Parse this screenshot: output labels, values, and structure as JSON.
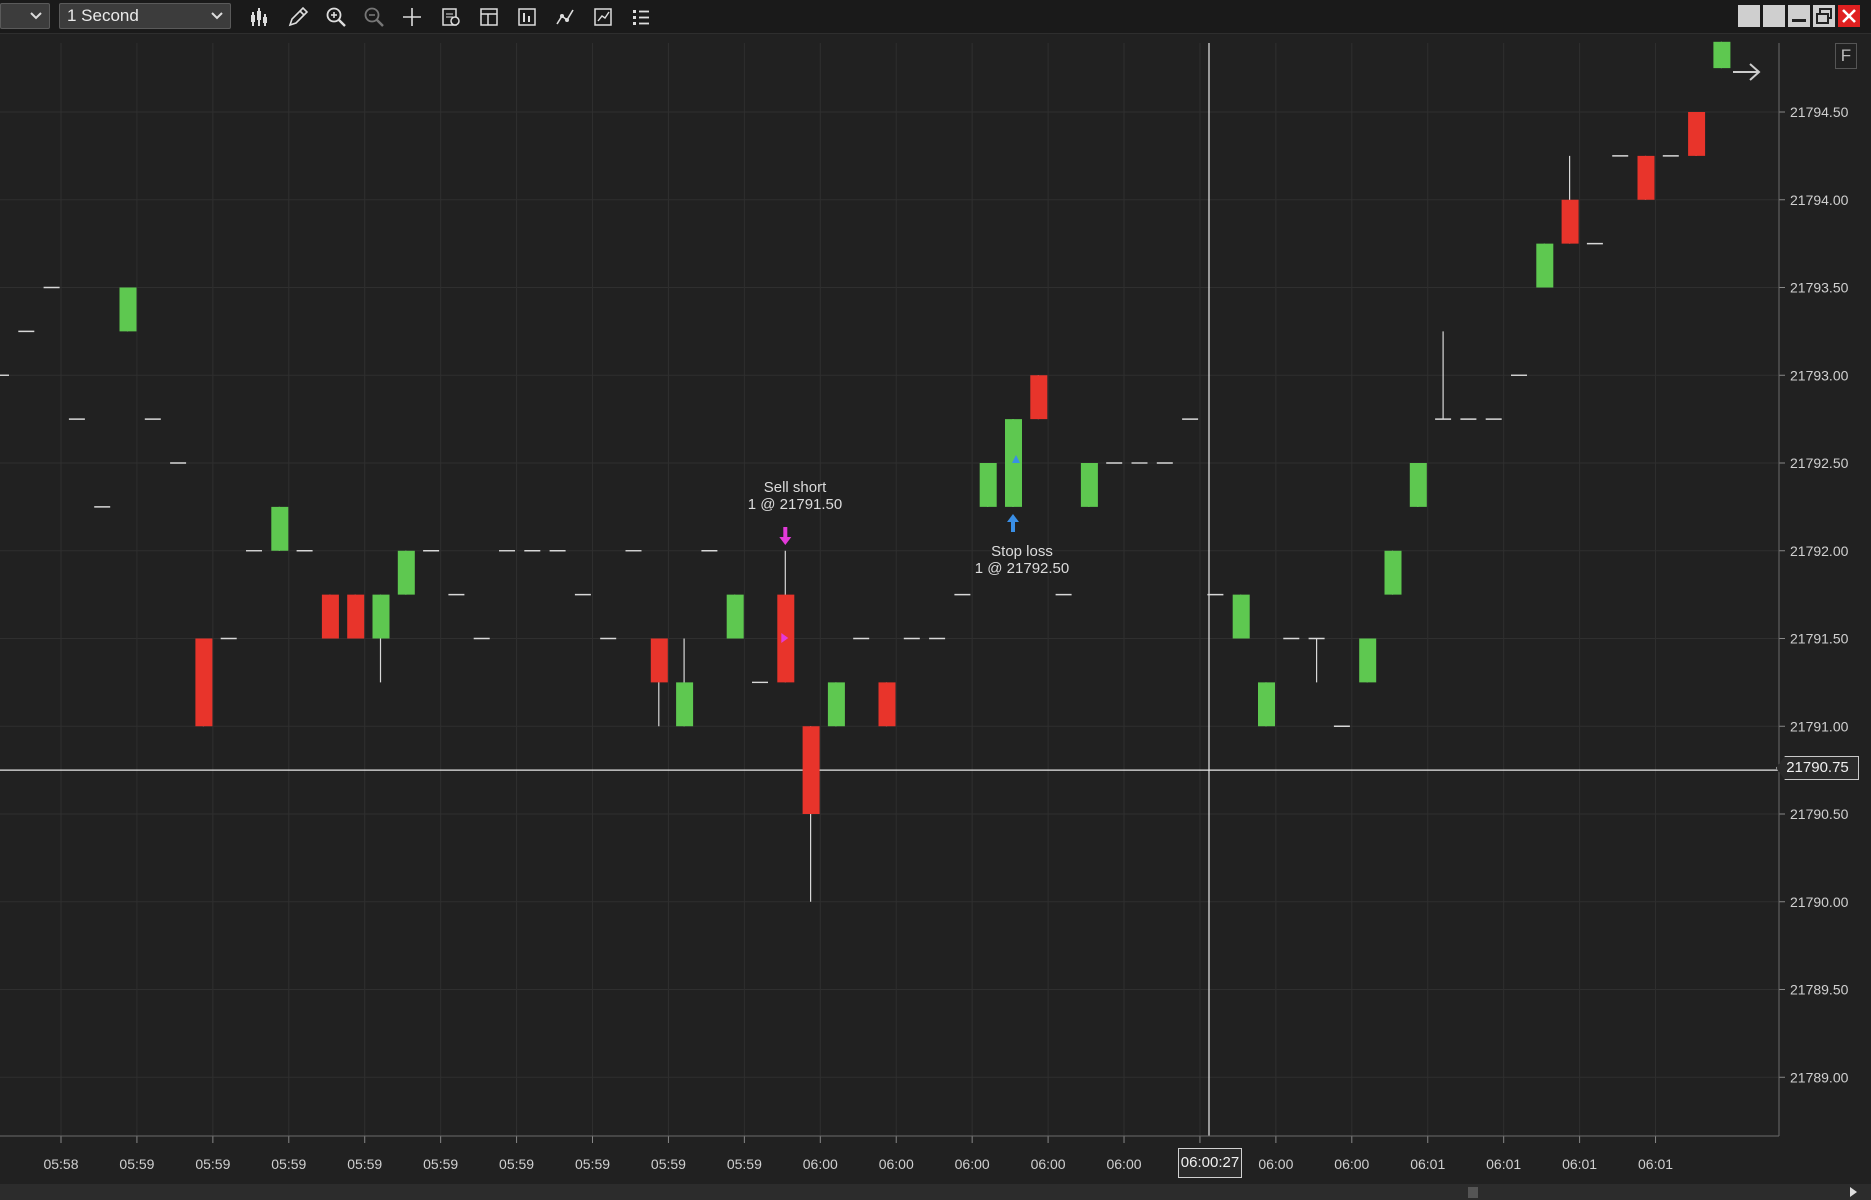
{
  "toolbar": {
    "instrument_value": "",
    "interval_value": "1 Second",
    "icons": [
      "bar-type-icon",
      "draw-pencil-icon",
      "zoom-in-icon",
      "zoom-out-icon",
      "crosshair-icon",
      "properties-icon",
      "templates-icon",
      "chart-trader-icon",
      "indicators-icon",
      "strategies-icon",
      "data-box-icon"
    ]
  },
  "window_controls": [
    "tile-icon",
    "tile-icon",
    "minimize-icon",
    "restore-icon",
    "close-icon"
  ],
  "colors": {
    "background": "#212121",
    "up": "#5ec850",
    "down": "#e8342b",
    "grid": "#2f2f2f",
    "buy_marker": "#3a8fe6",
    "sell_marker": "#e33ad9"
  },
  "chart_data": {
    "type": "candlestick",
    "interval": "1 Second",
    "ylim": [
      21788.5,
      21794.9
    ],
    "y_ticks": [
      "21794.50",
      "21794.00",
      "21793.50",
      "21793.00",
      "21792.50",
      "21792.00",
      "21791.50",
      "21791.00",
      "21790.50",
      "21790.00",
      "21789.50",
      "21789.00"
    ],
    "x_ticks": [
      "05:58",
      "05:59",
      "05:59",
      "05:59",
      "05:59",
      "05:59",
      "05:59",
      "05:59",
      "05:59",
      "05:59",
      "06:00",
      "06:00",
      "06:00",
      "06:00",
      "06:00",
      "06:00",
      "06:00",
      "06:00",
      "06:01",
      "06:01",
      "06:01",
      "06:01"
    ],
    "crosshair_price": "21790.75",
    "crosshair_time": "06:00:27",
    "candles": [
      {
        "o": 21793.0,
        "h": 21793.0,
        "l": 21793.0,
        "c": 21793.0
      },
      {
        "o": 21793.25,
        "h": 21793.25,
        "l": 21793.25,
        "c": 21793.25
      },
      {
        "o": 21793.5,
        "h": 21793.5,
        "l": 21793.5,
        "c": 21793.5
      },
      {
        "o": 21792.75,
        "h": 21792.75,
        "l": 21792.75,
        "c": 21792.75
      },
      {
        "o": 21792.25,
        "h": 21792.25,
        "l": 21792.25,
        "c": 21792.25
      },
      {
        "o": 21793.25,
        "h": 21793.5,
        "l": 21793.25,
        "c": 21793.5
      },
      {
        "o": 21792.75,
        "h": 21792.75,
        "l": 21792.75,
        "c": 21792.75
      },
      {
        "o": 21792.5,
        "h": 21792.5,
        "l": 21792.5,
        "c": 21792.5
      },
      {
        "o": 21791.5,
        "h": 21791.5,
        "l": 21791.0,
        "c": 21791.0
      },
      {
        "o": 21791.5,
        "h": 21791.5,
        "l": 21791.5,
        "c": 21791.5
      },
      {
        "o": 21792.0,
        "h": 21792.0,
        "l": 21792.0,
        "c": 21792.0
      },
      {
        "o": 21792.0,
        "h": 21792.25,
        "l": 21792.0,
        "c": 21792.25
      },
      {
        "o": 21792.0,
        "h": 21792.0,
        "l": 21792.0,
        "c": 21792.0
      },
      {
        "o": 21791.75,
        "h": 21791.75,
        "l": 21791.5,
        "c": 21791.5
      },
      {
        "o": 21791.75,
        "h": 21791.75,
        "l": 21791.5,
        "c": 21791.5
      },
      {
        "o": 21791.5,
        "h": 21791.75,
        "l": 21791.25,
        "c": 21791.75
      },
      {
        "o": 21791.75,
        "h": 21792.0,
        "l": 21791.75,
        "c": 21792.0
      },
      {
        "o": 21792.0,
        "h": 21792.0,
        "l": 21792.0,
        "c": 21792.0
      },
      {
        "o": 21791.75,
        "h": 21791.75,
        "l": 21791.75,
        "c": 21791.75
      },
      {
        "o": 21791.5,
        "h": 21791.5,
        "l": 21791.5,
        "c": 21791.5
      },
      {
        "o": 21792.0,
        "h": 21792.0,
        "l": 21792.0,
        "c": 21792.0
      },
      {
        "o": 21792.0,
        "h": 21792.0,
        "l": 21792.0,
        "c": 21792.0
      },
      {
        "o": 21792.0,
        "h": 21792.0,
        "l": 21792.0,
        "c": 21792.0
      },
      {
        "o": 21791.75,
        "h": 21791.75,
        "l": 21791.75,
        "c": 21791.75
      },
      {
        "o": 21791.5,
        "h": 21791.5,
        "l": 21791.5,
        "c": 21791.5
      },
      {
        "o": 21792.0,
        "h": 21792.0,
        "l": 21792.0,
        "c": 21792.0
      },
      {
        "o": 21791.5,
        "h": 21791.5,
        "l": 21791.0,
        "c": 21791.25
      },
      {
        "o": 21791.0,
        "h": 21791.5,
        "l": 21791.0,
        "c": 21791.25
      },
      {
        "o": 21792.0,
        "h": 21792.0,
        "l": 21792.0,
        "c": 21792.0
      },
      {
        "o": 21791.5,
        "h": 21791.75,
        "l": 21791.5,
        "c": 21791.75
      },
      {
        "o": 21791.25,
        "h": 21791.25,
        "l": 21791.25,
        "c": 21791.25
      },
      {
        "o": 21791.75,
        "h": 21792.0,
        "l": 21791.25,
        "c": 21791.25
      },
      {
        "o": 21791.0,
        "h": 21791.0,
        "l": 21790.0,
        "c": 21790.5
      },
      {
        "o": 21791.0,
        "h": 21791.25,
        "l": 21791.0,
        "c": 21791.25
      },
      {
        "o": 21791.5,
        "h": 21791.5,
        "l": 21791.5,
        "c": 21791.5
      },
      {
        "o": 21791.25,
        "h": 21791.25,
        "l": 21791.0,
        "c": 21791.0
      },
      {
        "o": 21791.5,
        "h": 21791.5,
        "l": 21791.5,
        "c": 21791.5
      },
      {
        "o": 21791.5,
        "h": 21791.5,
        "l": 21791.5,
        "c": 21791.5
      },
      {
        "o": 21791.75,
        "h": 21791.75,
        "l": 21791.75,
        "c": 21791.75
      },
      {
        "o": 21792.25,
        "h": 21792.5,
        "l": 21792.25,
        "c": 21792.5
      },
      {
        "o": 21792.25,
        "h": 21792.75,
        "l": 21792.25,
        "c": 21792.75
      },
      {
        "o": 21793.0,
        "h": 21793.0,
        "l": 21792.75,
        "c": 21792.75
      },
      {
        "o": 21791.75,
        "h": 21791.75,
        "l": 21791.75,
        "c": 21791.75
      },
      {
        "o": 21792.25,
        "h": 21792.5,
        "l": 21792.25,
        "c": 21792.5
      },
      {
        "o": 21792.5,
        "h": 21792.5,
        "l": 21792.5,
        "c": 21792.5
      },
      {
        "o": 21792.5,
        "h": 21792.5,
        "l": 21792.5,
        "c": 21792.5
      },
      {
        "o": 21792.5,
        "h": 21792.5,
        "l": 21792.5,
        "c": 21792.5
      },
      {
        "o": 21792.75,
        "h": 21792.75,
        "l": 21792.75,
        "c": 21792.75
      },
      {
        "o": 21791.75,
        "h": 21791.75,
        "l": 21791.75,
        "c": 21791.75
      },
      {
        "o": 21791.5,
        "h": 21791.75,
        "l": 21791.5,
        "c": 21791.75
      },
      {
        "o": 21791.0,
        "h": 21791.25,
        "l": 21791.0,
        "c": 21791.25
      },
      {
        "o": 21791.5,
        "h": 21791.5,
        "l": 21791.5,
        "c": 21791.5
      },
      {
        "o": 21791.5,
        "h": 21791.5,
        "l": 21791.25,
        "c": 21791.5
      },
      {
        "o": 21791.0,
        "h": 21791.0,
        "l": 21791.0,
        "c": 21791.0
      },
      {
        "o": 21791.25,
        "h": 21791.5,
        "l": 21791.25,
        "c": 21791.5
      },
      {
        "o": 21791.75,
        "h": 21792.0,
        "l": 21791.75,
        "c": 21792.0
      },
      {
        "o": 21792.25,
        "h": 21792.5,
        "l": 21792.25,
        "c": 21792.5
      },
      {
        "o": 21792.75,
        "h": 21793.25,
        "l": 21792.75,
        "c": 21792.75
      },
      {
        "o": 21792.75,
        "h": 21792.75,
        "l": 21792.75,
        "c": 21792.75
      },
      {
        "o": 21792.75,
        "h": 21792.75,
        "l": 21792.75,
        "c": 21792.75
      },
      {
        "o": 21793.0,
        "h": 21793.0,
        "l": 21793.0,
        "c": 21793.0
      },
      {
        "o": 21793.5,
        "h": 21793.75,
        "l": 21793.5,
        "c": 21793.75
      },
      {
        "o": 21794.0,
        "h": 21794.25,
        "l": 21793.75,
        "c": 21793.75
      },
      {
        "o": 21793.75,
        "h": 21793.75,
        "l": 21793.75,
        "c": 21793.75
      },
      {
        "o": 21794.25,
        "h": 21794.25,
        "l": 21794.25,
        "c": 21794.25
      },
      {
        "o": 21794.25,
        "h": 21794.25,
        "l": 21794.0,
        "c": 21794.0
      },
      {
        "o": 21794.25,
        "h": 21794.25,
        "l": 21794.25,
        "c": 21794.25
      },
      {
        "o": 21794.5,
        "h": 21794.5,
        "l": 21794.25,
        "c": 21794.25
      },
      {
        "o": 21794.75,
        "h": 21794.9,
        "l": 21794.75,
        "c": 21794.9
      }
    ],
    "annotations": [
      {
        "label": "Sell short",
        "detail": "1 @ 21791.50",
        "candle": 31,
        "side": "sell"
      },
      {
        "label": "Stop loss",
        "detail": "1 @ 21792.50",
        "candle": 40,
        "side": "buy"
      }
    ]
  }
}
